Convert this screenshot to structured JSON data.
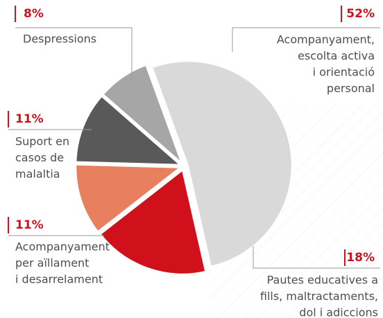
{
  "chart_data": {
    "type": "pie",
    "categories": [
      [
        "Acompanyament,",
        "escolta activa",
        "i orientació",
        "personal"
      ],
      [
        "Pautes educatives a",
        "fills, maltractaments,",
        "dol i adiccions"
      ],
      [
        "Acompanyament",
        "per aïllament",
        "i desarrelament"
      ],
      [
        "Suport en",
        "casos de",
        "malaltia"
      ],
      [
        "Despressions"
      ]
    ],
    "values": [
      52,
      18,
      11,
      11,
      8
    ],
    "value_labels": [
      "52%",
      "18%",
      "11%",
      "11%",
      "8%"
    ],
    "colors": [
      "#d9d9d9",
      "#d0111b",
      "#e8805f",
      "#595959",
      "#a6a6a6"
    ]
  }
}
